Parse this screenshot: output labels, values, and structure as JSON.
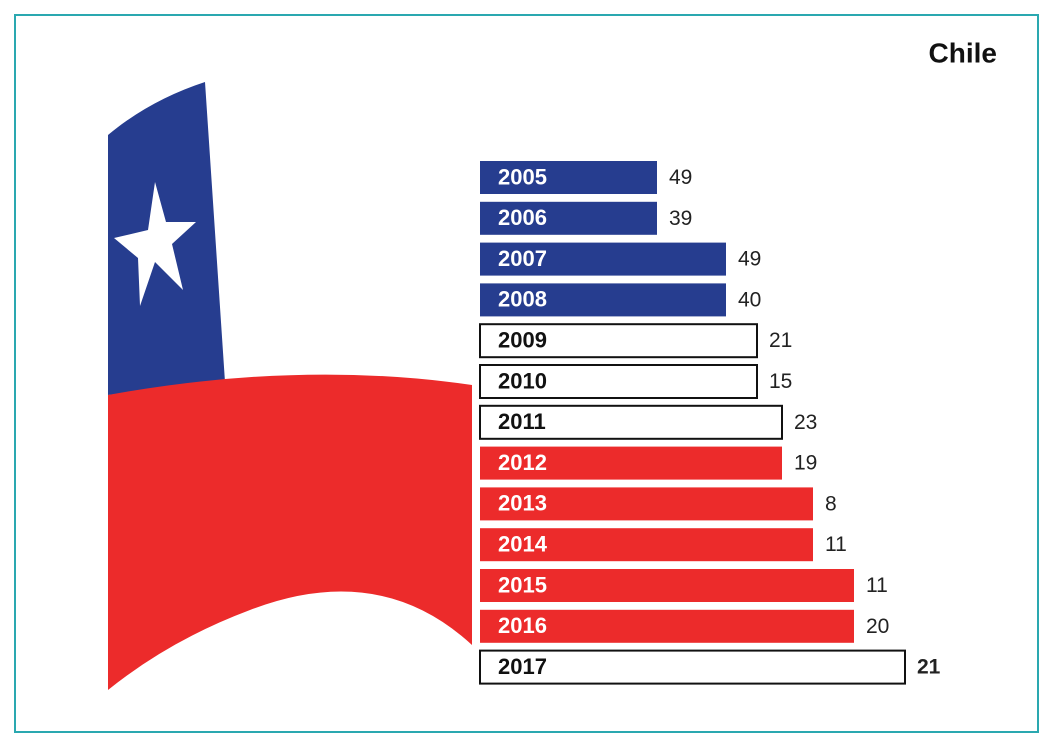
{
  "title": "Chile",
  "rows": [
    {
      "year": "2005",
      "value": "49",
      "color": "#263d8f"
    },
    {
      "year": "2006",
      "value": "39",
      "color": "#263d8f"
    },
    {
      "year": "2007",
      "value": "49",
      "color": "#263d8f"
    },
    {
      "year": "2008",
      "value": "40",
      "color": "#263d8f"
    },
    {
      "year": "2009",
      "value": "21",
      "color": "#ffffff"
    },
    {
      "year": "2010",
      "value": "15",
      "color": "#ffffff"
    },
    {
      "year": "2011",
      "value": "23",
      "color": "#ffffff"
    },
    {
      "year": "2012",
      "value": "19",
      "color": "#ec2b2b"
    },
    {
      "year": "2013",
      "value": "8",
      "color": "#ec2b2b"
    },
    {
      "year": "2014",
      "value": "11",
      "color": "#ec2b2b"
    },
    {
      "year": "2015",
      "value": "11",
      "color": "#ec2b2b"
    },
    {
      "year": "2016",
      "value": "20",
      "color": "#ec2b2b"
    },
    {
      "year": "2017",
      "value": "21",
      "color": "#ffffff"
    }
  ]
}
